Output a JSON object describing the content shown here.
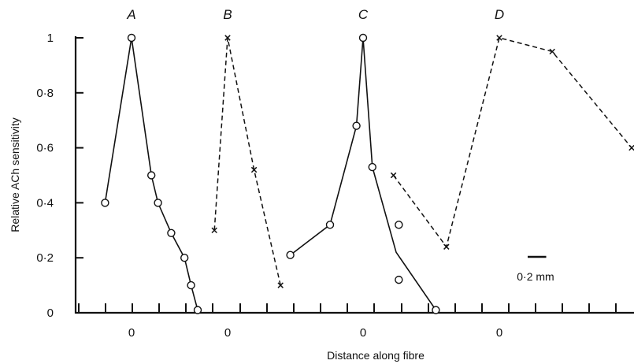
{
  "chart_data": {
    "type": "line",
    "xlabel": "Distance along fibre",
    "ylabel": "Relative ACh sensitivity",
    "ylim": [
      0,
      1
    ],
    "y_ticks": [
      "0",
      "0·2",
      "0·4",
      "0·6",
      "0·8",
      "1"
    ],
    "scale_bar": "0·2 mm",
    "panels": [
      {
        "name": "A",
        "x_tick_label": "0",
        "x_unit": "mm",
        "line_style": "solid",
        "marker": "circle",
        "points": [
          {
            "x": -0.2,
            "y": 0.4
          },
          {
            "x": 0.0,
            "y": 1.0
          },
          {
            "x": 0.15,
            "y": 0.5
          },
          {
            "x": 0.2,
            "y": 0.4
          },
          {
            "x": 0.3,
            "y": 0.29
          },
          {
            "x": 0.4,
            "y": 0.2
          },
          {
            "x": 0.45,
            "y": 0.1
          },
          {
            "x": 0.5,
            "y": 0.01
          }
        ],
        "unconnected_points": []
      },
      {
        "name": "B",
        "x_tick_label": "0",
        "x_unit": "mm",
        "line_style": "dashed",
        "marker": "cross",
        "points": [
          {
            "x": -0.1,
            "y": 0.3
          },
          {
            "x": 0.0,
            "y": 1.0
          },
          {
            "x": 0.2,
            "y": 0.52
          },
          {
            "x": 0.4,
            "y": 0.1
          }
        ],
        "unconnected_points": []
      },
      {
        "name": "C",
        "x_tick_label": "0",
        "x_unit": "mm",
        "line_style": "solid",
        "marker": "circle",
        "points": [
          {
            "x": -0.55,
            "y": 0.21
          },
          {
            "x": -0.25,
            "y": 0.32
          },
          {
            "x": -0.05,
            "y": 0.68
          },
          {
            "x": 0.0,
            "y": 1.0
          },
          {
            "x": 0.07,
            "y": 0.53
          },
          {
            "x": 0.55,
            "y": 0.01
          }
        ],
        "line_vertices": [
          {
            "x": -0.55,
            "y": 0.21
          },
          {
            "x": -0.25,
            "y": 0.32
          },
          {
            "x": -0.05,
            "y": 0.68
          },
          {
            "x": 0.0,
            "y": 1.0
          },
          {
            "x": 0.07,
            "y": 0.53
          },
          {
            "x": 0.25,
            "y": 0.22
          },
          {
            "x": 0.55,
            "y": 0.01
          }
        ],
        "unconnected_points": [
          {
            "x": 0.27,
            "y": 0.32
          },
          {
            "x": 0.27,
            "y": 0.12
          }
        ]
      },
      {
        "name": "D",
        "x_tick_label": "0",
        "x_unit": "mm",
        "line_style": "dashed",
        "marker": "cross",
        "points": [
          {
            "x": -0.8,
            "y": 0.5
          },
          {
            "x": -0.4,
            "y": 0.24
          },
          {
            "x": 0.0,
            "y": 1.0
          },
          {
            "x": 0.4,
            "y": 0.95
          },
          {
            "x": 1.0,
            "y": 0.6
          }
        ],
        "unconnected_points": []
      }
    ]
  }
}
